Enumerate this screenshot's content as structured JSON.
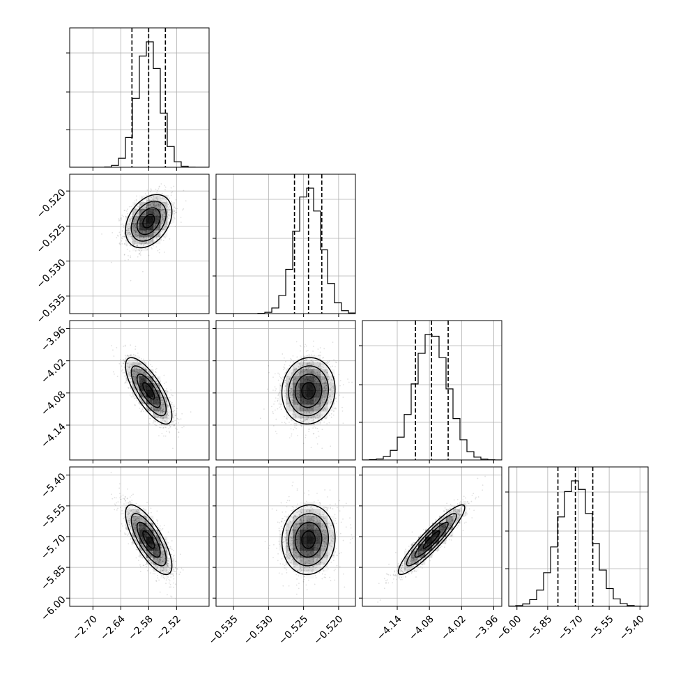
{
  "chart_data": {
    "type": "corner",
    "title": "",
    "parameters": [
      {
        "index": 0,
        "range": [
          -2.75,
          -2.45
        ],
        "ticks": [
          -2.7,
          -2.64,
          -2.58,
          -2.52
        ],
        "tick_labels": [
          "−2.70",
          "−2.64",
          "−2.58",
          "−2.52"
        ],
        "quantiles": [
          -2.616,
          -2.58,
          -2.544
        ],
        "mean": -2.58,
        "sd": 0.025
      },
      {
        "index": 1,
        "range": [
          -0.5375,
          -0.5176
        ],
        "ticks": [
          -0.535,
          -0.53,
          -0.525,
          -0.52
        ],
        "tick_labels": [
          "−0.535",
          "−0.530",
          "−0.525",
          "−0.520"
        ],
        "quantiles": [
          -0.5263,
          -0.5243,
          -0.5224
        ],
        "mean": -0.5243,
        "sd": 0.0019
      },
      {
        "index": 2,
        "range": [
          -4.205,
          -3.945
        ],
        "ticks": [
          -4.14,
          -4.08,
          -4.02,
          -3.96
        ],
        "tick_labels": [
          "−4.14",
          "−4.08",
          "−4.02",
          "−3.96"
        ],
        "quantiles": [
          -4.106,
          -4.076,
          -4.045
        ],
        "mean": -4.076,
        "sd": 0.031
      },
      {
        "index": 3,
        "range": [
          -6.04,
          -5.36
        ],
        "ticks": [
          -6.0,
          -5.85,
          -5.7,
          -5.55,
          -5.4
        ],
        "tick_labels": [
          "−6.00",
          "−5.85",
          "−5.70",
          "−5.55",
          "−5.40"
        ],
        "quantiles": [
          -5.8,
          -5.715,
          -5.63
        ],
        "mean": -5.715,
        "sd": 0.085
      }
    ],
    "correlations": [
      {
        "pair": [
          0,
          1
        ],
        "rho": 0.35
      },
      {
        "pair": [
          0,
          2
        ],
        "rho": -0.75
      },
      {
        "pair": [
          0,
          3
        ],
        "rho": -0.75
      },
      {
        "pair": [
          1,
          2
        ],
        "rho": 0.05
      },
      {
        "pair": [
          1,
          3
        ],
        "rho": 0.05
      },
      {
        "pair": [
          2,
          3
        ],
        "rho": 0.92
      }
    ],
    "histogram_bins": 20,
    "contour_levels": [
      "0.5 sigma",
      "1 sigma",
      "1.5 sigma",
      "2 sigma"
    ],
    "grid": true,
    "colors": {
      "hist": "#000000",
      "points": "#000000",
      "contours": "#000000",
      "grid": "#b0b0b0"
    }
  }
}
